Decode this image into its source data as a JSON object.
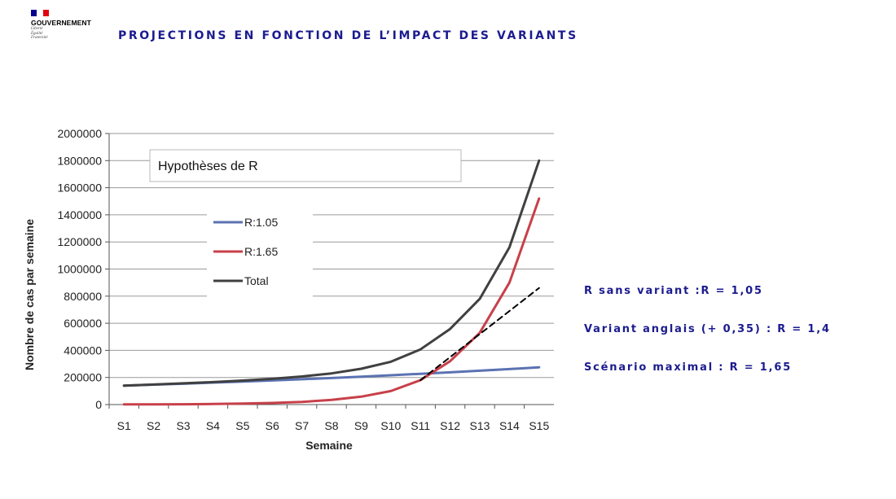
{
  "header": {
    "logo_word": "GOUVERNEMENT",
    "logo_motto": [
      "Liberté",
      "Égalité",
      "Fraternité"
    ],
    "logo_flag_colors": [
      "#000091",
      "#ffffff",
      "#e1000f"
    ],
    "title": "PROJECTIONS EN FONCTION DE L’IMPACT DES VARIANTS"
  },
  "notes": [
    "R sans variant :R = 1,05",
    "Variant anglais (+ 0,35) : R = 1,4",
    "Scénario maximal : R = 1,65"
  ],
  "chart_data": {
    "type": "line",
    "title": "Hypothèses de R",
    "xlabel": "Semaine",
    "ylabel": "Nombre de cas par semaine",
    "categories": [
      "S1",
      "S2",
      "S3",
      "S4",
      "S5",
      "S6",
      "S7",
      "S8",
      "S9",
      "S10",
      "S11",
      "S12",
      "S13",
      "S14",
      "S15"
    ],
    "ylim": [
      0,
      2000000
    ],
    "yticks": [
      "2000000",
      "1800000",
      "1600000",
      "1400000",
      "1200000",
      "1000000",
      "800000",
      "600000",
      "400000",
      "200000",
      "0"
    ],
    "grid": true,
    "legend_position": "top-left",
    "series": [
      {
        "name": "R:1.05",
        "color": "#5b72b2",
        "style": "solid",
        "values": [
          140000,
          147000,
          154000,
          162000,
          170000,
          178000,
          187000,
          196000,
          206000,
          216000,
          227000,
          238000,
          250000,
          262000,
          275000
        ]
      },
      {
        "name": "R:1.65",
        "color": "#c8404a",
        "style": "solid",
        "values": [
          1000,
          1500,
          2500,
          4500,
          7500,
          12000,
          20000,
          34000,
          58000,
          100000,
          180000,
          320000,
          530000,
          900000,
          1520000
        ]
      },
      {
        "name": "Total",
        "color": "#404040",
        "style": "solid",
        "values": [
          140000,
          148000,
          157000,
          166000,
          177000,
          190000,
          207000,
          230000,
          264000,
          316000,
          407000,
          558000,
          780000,
          1160000,
          1800000
        ]
      },
      {
        "name": "",
        "color": "#000000",
        "style": "dashed",
        "x": [
          "S11",
          "S15"
        ],
        "values": [
          180000,
          860000
        ]
      }
    ]
  }
}
